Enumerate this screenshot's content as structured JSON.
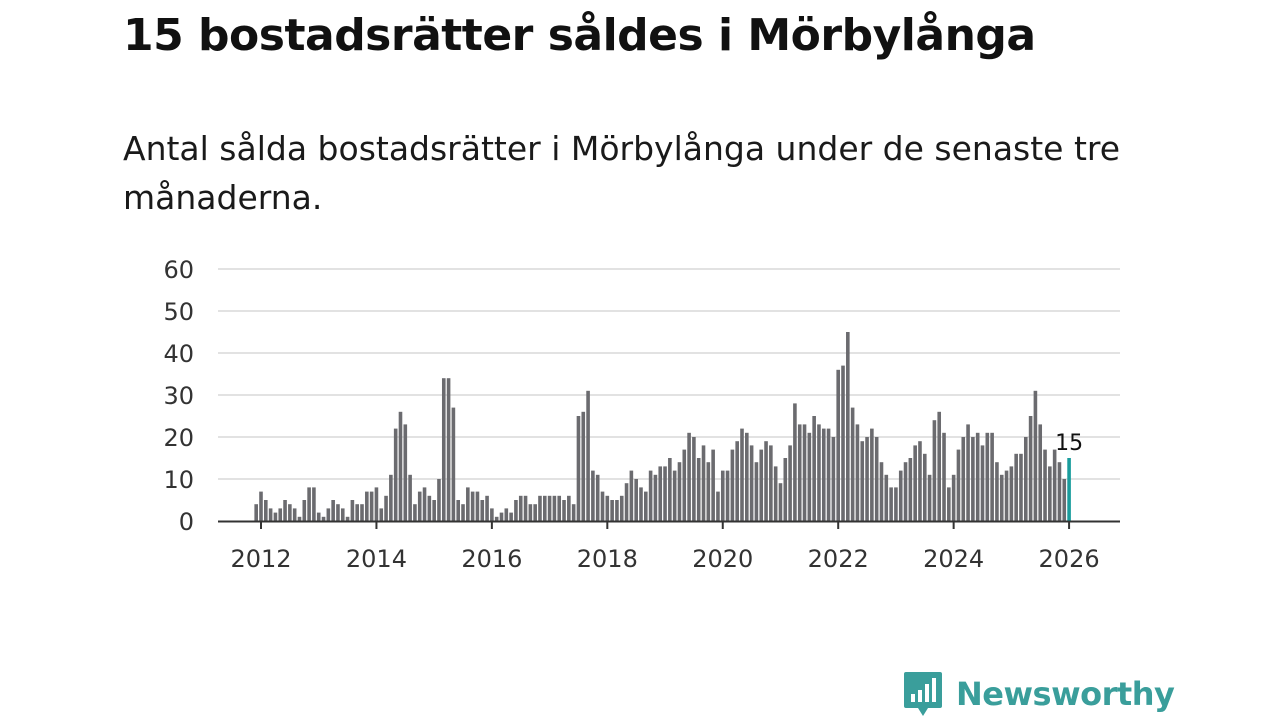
{
  "header": {
    "title": "15 bostadsrätter såldes i Mörbylånga",
    "subtitle": "Antal sålda bostadsrätter i Mörbylånga under de senaste tre månaderna."
  },
  "brand": {
    "name": "Newsworthy",
    "color": "#3a9e9b"
  },
  "colors": {
    "bar": "#6b6b6f",
    "highlight": "#1a9c9c",
    "grid": "#d9d9d9",
    "axis": "#333333"
  },
  "chart_data": {
    "type": "bar",
    "title": "Antal sålda bostadsrätter i Mörbylånga",
    "xlabel": "",
    "ylabel": "",
    "ylim": [
      0,
      60
    ],
    "yticks": [
      "0",
      "10",
      "20",
      "30",
      "40",
      "50",
      "60"
    ],
    "xticks": [
      "2012",
      "2014",
      "2016",
      "2018",
      "2020",
      "2022",
      "2024",
      "2026"
    ],
    "start": "2011-12",
    "values": [
      4,
      7,
      5,
      3,
      2,
      3,
      5,
      4,
      3,
      1,
      5,
      8,
      8,
      2,
      1,
      3,
      5,
      4,
      3,
      1,
      5,
      4,
      4,
      7,
      7,
      8,
      3,
      6,
      11,
      22,
      26,
      23,
      11,
      4,
      7,
      8,
      6,
      5,
      10,
      34,
      34,
      27,
      5,
      4,
      8,
      7,
      7,
      5,
      6,
      3,
      1,
      2,
      3,
      2,
      5,
      6,
      6,
      4,
      4,
      6,
      6,
      6,
      6,
      6,
      5,
      6,
      4,
      25,
      26,
      31,
      12,
      11,
      7,
      6,
      5,
      5,
      6,
      9,
      12,
      10,
      8,
      7,
      12,
      11,
      13,
      13,
      15,
      12,
      14,
      17,
      21,
      20,
      15,
      18,
      14,
      17,
      7,
      12,
      12,
      17,
      19,
      22,
      21,
      18,
      14,
      17,
      19,
      18,
      13,
      9,
      15,
      18,
      28,
      23,
      23,
      21,
      25,
      23,
      22,
      22,
      20,
      36,
      37,
      45,
      27,
      23,
      19,
      20,
      22,
      20,
      14,
      11,
      8,
      8,
      12,
      14,
      15,
      18,
      19,
      16,
      11,
      24,
      26,
      21,
      8,
      11,
      17,
      20,
      23,
      20,
      21,
      18,
      21,
      21,
      14,
      11,
      12,
      13,
      16,
      16,
      20,
      25,
      31,
      23,
      17,
      13,
      17,
      14,
      10,
      15
    ],
    "highlight_last": true,
    "annotation": {
      "label": "15",
      "value": 15
    }
  }
}
